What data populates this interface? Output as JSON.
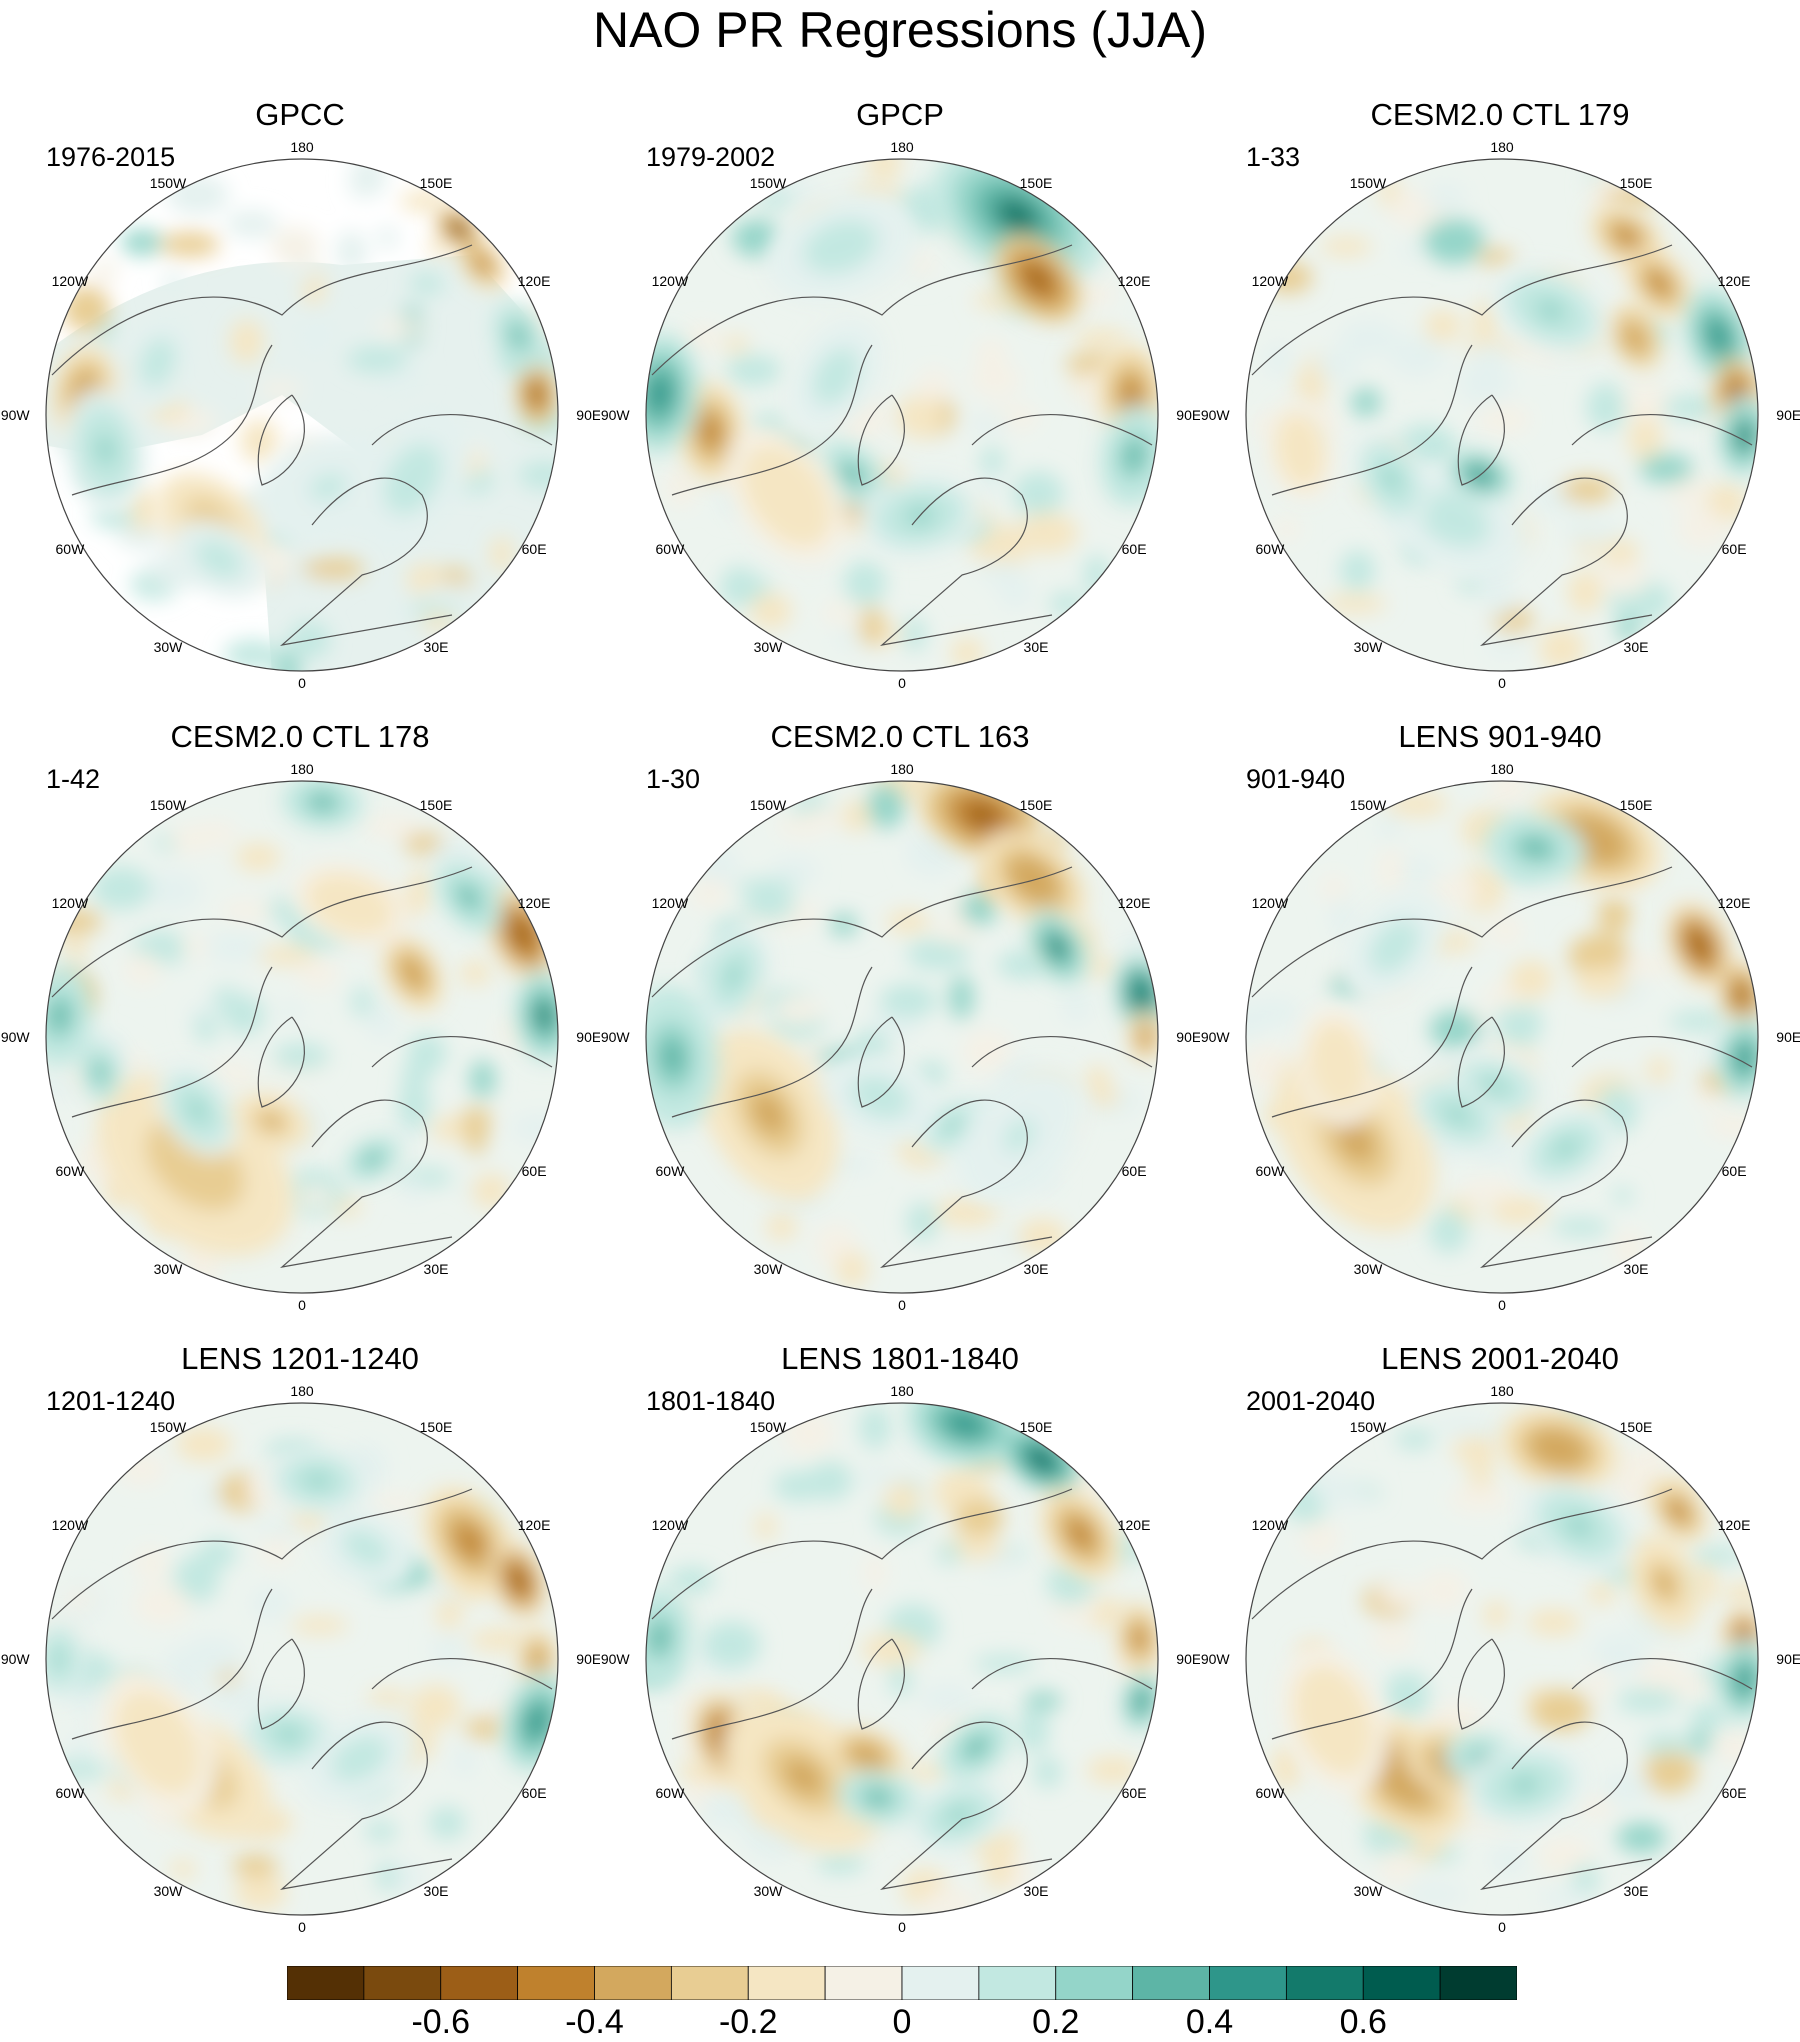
{
  "title": "NAO PR Regressions (JJA)",
  "longitude_labels": [
    "180",
    "150E",
    "120E",
    "90E",
    "60E",
    "30E",
    "0",
    "30W",
    "60W",
    "90W",
    "120W",
    "150W"
  ],
  "panels": [
    {
      "title": "GPCC",
      "period": "1976-2015",
      "pattern": "gpcc"
    },
    {
      "title": "GPCP",
      "period": "1979-2002",
      "pattern": "gpcp"
    },
    {
      "title": "CESM2.0 CTL 179",
      "period": "1-33",
      "pattern": "ctl179"
    },
    {
      "title": "CESM2.0 CTL 178",
      "period": "1-42",
      "pattern": "ctl178"
    },
    {
      "title": "CESM2.0 CTL 163",
      "period": "1-30",
      "pattern": "ctl163"
    },
    {
      "title": "LENS 901-940",
      "period": "901-940",
      "pattern": "lens901"
    },
    {
      "title": "LENS 1201-1240",
      "period": "1201-1240",
      "pattern": "lens1201"
    },
    {
      "title": "LENS 1801-1840",
      "period": "1801-1840",
      "pattern": "lens1801"
    },
    {
      "title": "LENS 2001-2040",
      "period": "2001-2040",
      "pattern": "lens2001"
    }
  ],
  "colorbar": {
    "levels": [
      -0.7,
      -0.6,
      -0.5,
      -0.4,
      -0.3,
      -0.2,
      -0.1,
      0,
      0.1,
      0.2,
      0.3,
      0.4,
      0.5,
      0.6,
      0.7
    ],
    "colors": [
      "#543005",
      "#7a4a0e",
      "#9c5e17",
      "#bf812d",
      "#d3a85e",
      "#e8cd93",
      "#f5e6c3",
      "#f5f1e6",
      "#e4f1ef",
      "#c2e8e1",
      "#94d5c9",
      "#5db5a6",
      "#2e968a",
      "#137a6b",
      "#005c4f",
      "#003c30"
    ],
    "tick_labels": [
      "-0.6",
      "-0.4",
      "-0.2",
      "0",
      "0.2",
      "0.4",
      "0.6"
    ],
    "tick_values": [
      -0.6,
      -0.4,
      -0.2,
      0,
      0.2,
      0.4,
      0.6
    ]
  },
  "chart_data": [
    {
      "type": "heatmap",
      "title": "GPCC",
      "subtitle": "1976-2015",
      "projection": "north polar stereographic",
      "values": "gridded precipitation regression anomalies (land only, white over ocean)"
    },
    {
      "type": "heatmap",
      "title": "GPCP",
      "subtitle": "1979-2002",
      "projection": "north polar stereographic"
    },
    {
      "type": "heatmap",
      "title": "CESM2.0 CTL 179",
      "subtitle": "1-33",
      "projection": "north polar stereographic"
    },
    {
      "type": "heatmap",
      "title": "CESM2.0 CTL 178",
      "subtitle": "1-42",
      "projection": "north polar stereographic"
    },
    {
      "type": "heatmap",
      "title": "CESM2.0 CTL 163",
      "subtitle": "1-30",
      "projection": "north polar stereographic"
    },
    {
      "type": "heatmap",
      "title": "LENS 901-940",
      "subtitle": "901-940",
      "projection": "north polar stereographic"
    },
    {
      "type": "heatmap",
      "title": "LENS 1201-1240",
      "subtitle": "1201-1240",
      "projection": "north polar stereographic"
    },
    {
      "type": "heatmap",
      "title": "LENS 1801-1840",
      "subtitle": "1801-1840",
      "projection": "north polar stereographic"
    },
    {
      "type": "heatmap",
      "title": "LENS 2001-2040",
      "subtitle": "2001-2040",
      "projection": "north polar stereographic"
    }
  ]
}
